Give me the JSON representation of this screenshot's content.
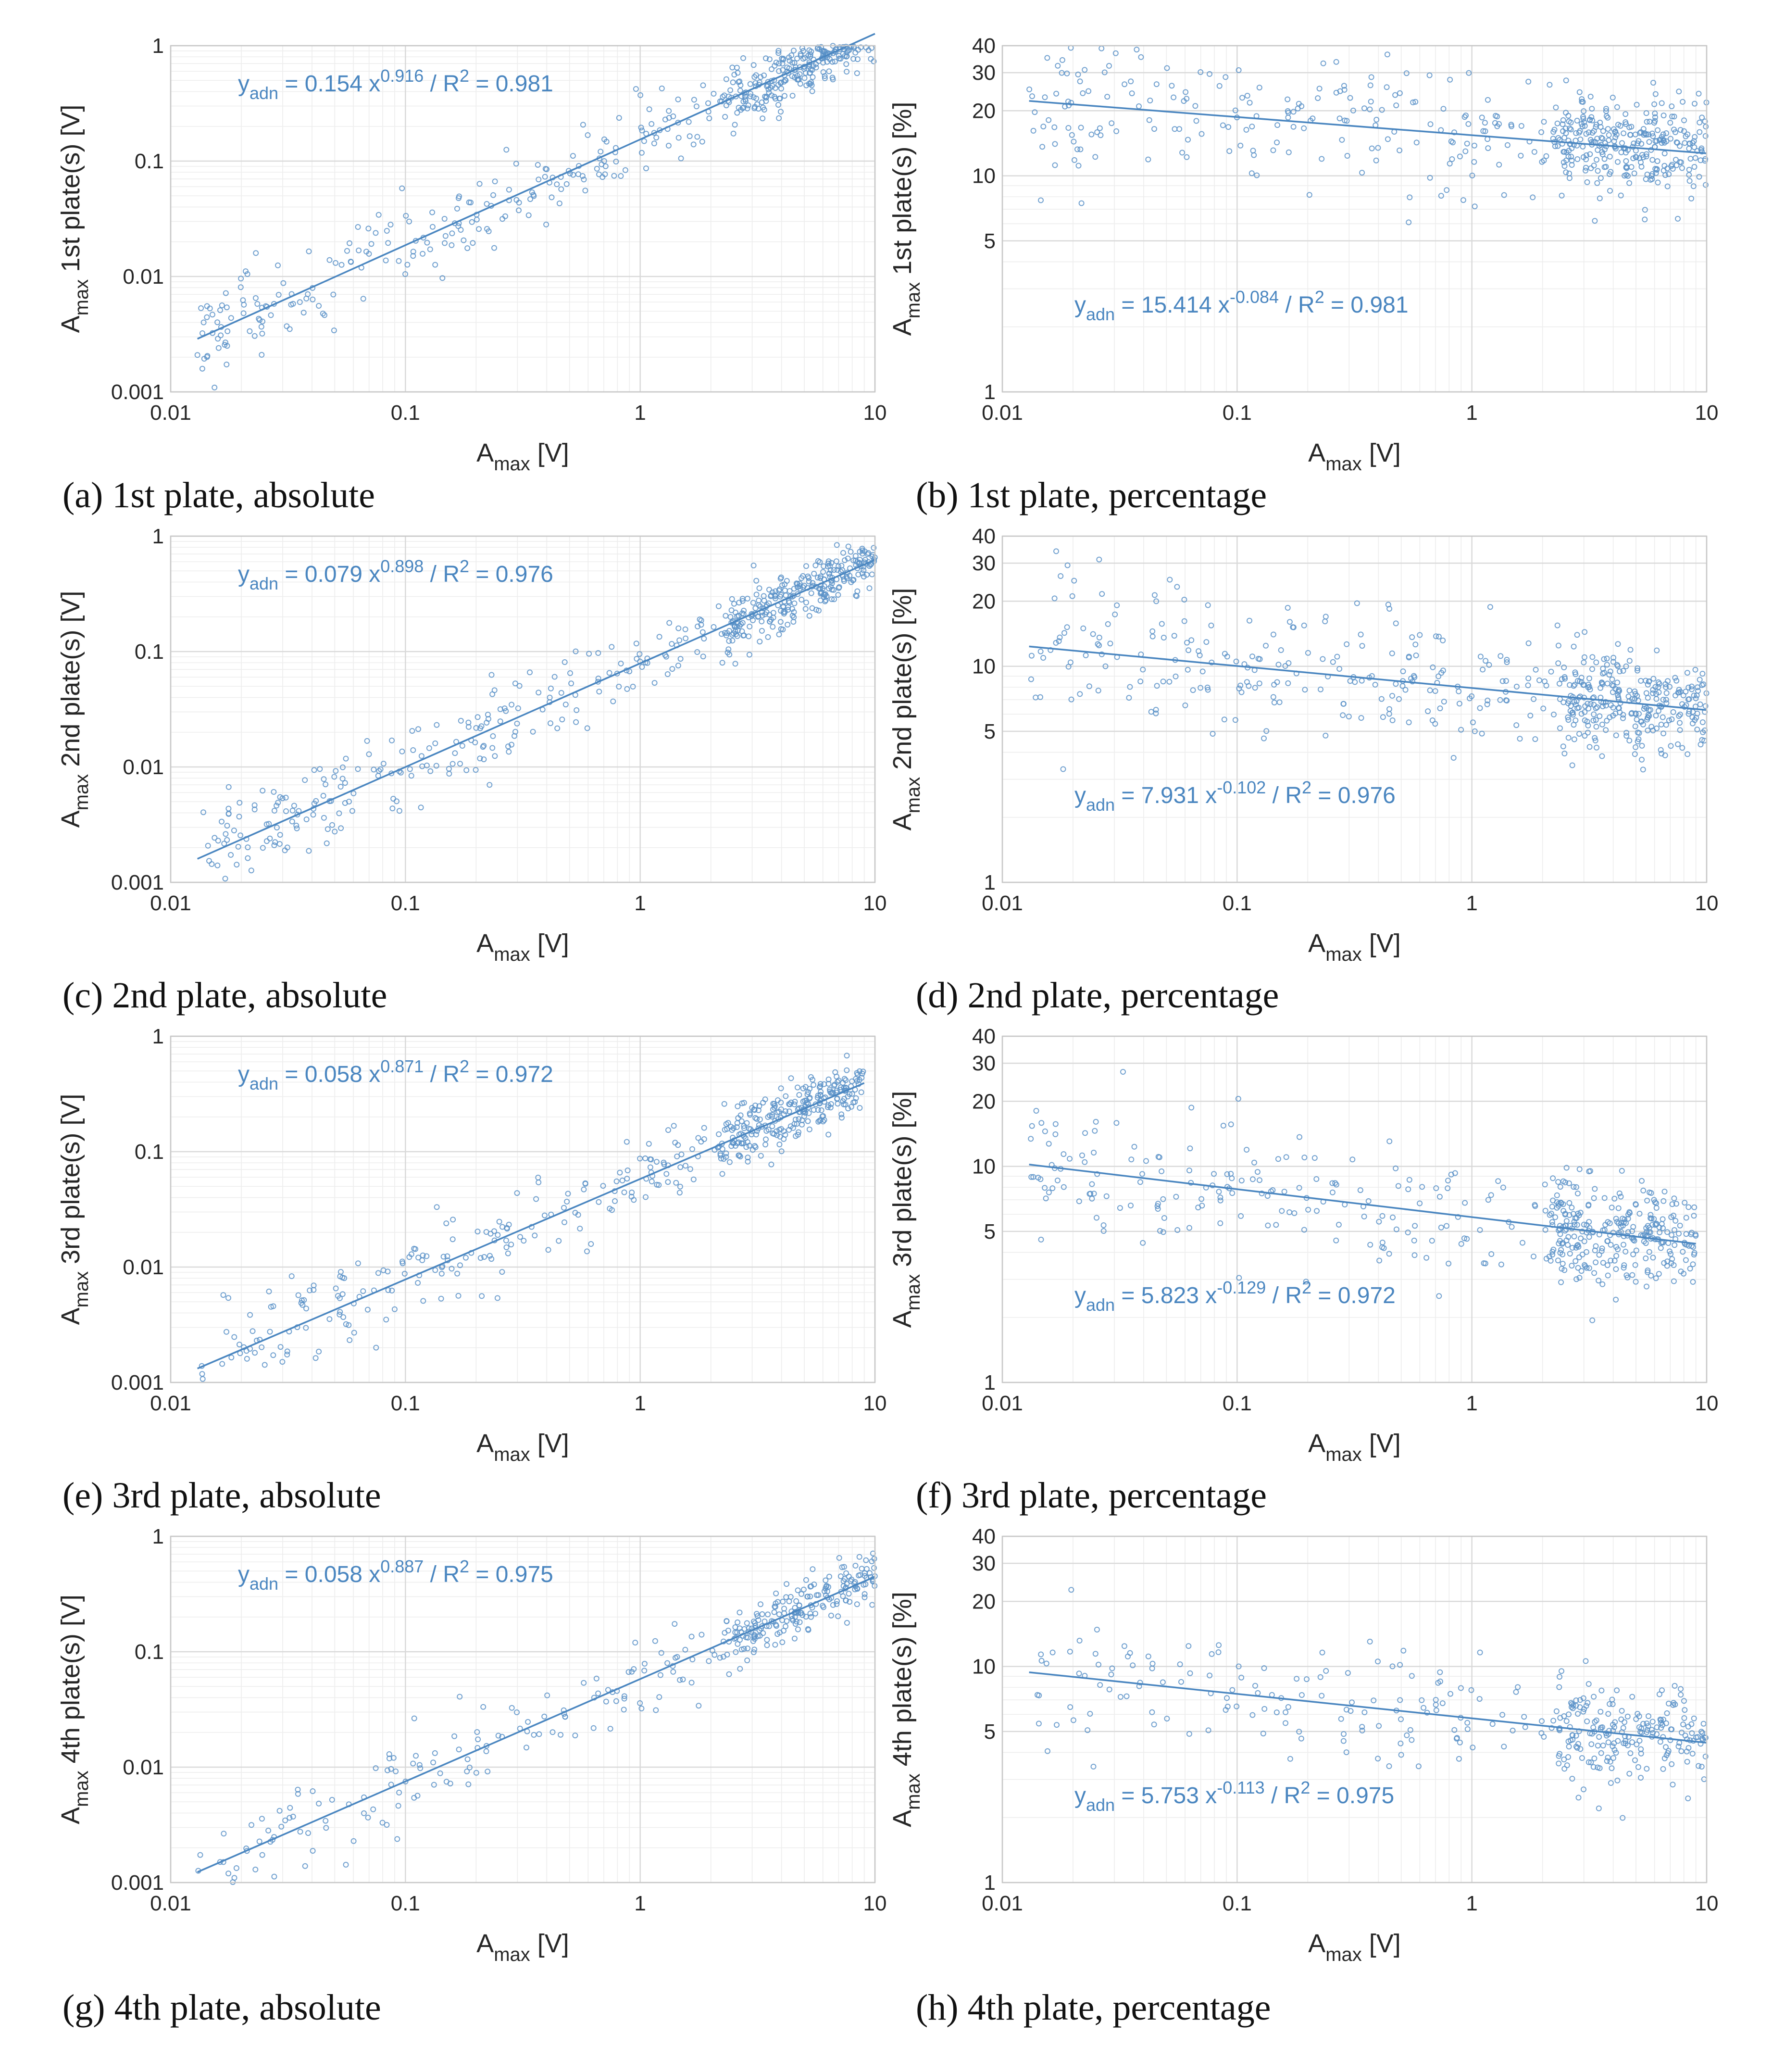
{
  "colors": {
    "series": "#5a92c8",
    "fit": "#4a86c0",
    "grid_major": "#d9d9d9",
    "grid_minor": "#ededed",
    "axis_text": "#262626"
  },
  "chart_data": [
    {
      "id": "a",
      "type": "scatter",
      "scale": "log-log",
      "caption": "(a) 1st plate, absolute",
      "xlabel_main": "A",
      "xlabel_sub": "max",
      "xlabel_unit": " [V]",
      "ylabel_main": "A",
      "ylabel_sub": "max",
      "ylabel_rest": " 1st plate(s) [V]",
      "xlim": [
        0.01,
        10
      ],
      "ylim": [
        0.001,
        1
      ],
      "xticks": [
        0.01,
        0.1,
        1,
        10
      ],
      "xtick_labels": [
        "0.01",
        "0.1",
        "1",
        "10"
      ],
      "yticks": [
        0.001,
        0.01,
        0.1,
        1
      ],
      "ytick_labels": [
        "0.001",
        "0.01",
        "0.1",
        "1"
      ],
      "grid": true,
      "fit": {
        "a": 0.154,
        "b": 0.916,
        "r2": 0.981,
        "x_range": [
          0.013,
          10
        ]
      },
      "equation": {
        "prefix": "y",
        "sub": "adn",
        "mid": " = 0.154 x",
        "exp": "0.916",
        "tail": " / R",
        "r2exp": "2",
        "end": " = 0.981"
      },
      "scatter": {
        "x_range": [
          0.013,
          10
        ],
        "spread": 0.18,
        "n": 520,
        "seed": 11
      }
    },
    {
      "id": "b",
      "type": "scatter",
      "scale": "log-log",
      "caption": "(b) 1st plate, percentage",
      "xlabel_main": "A",
      "xlabel_sub": "max",
      "xlabel_unit": " [V]",
      "ylabel_main": "A",
      "ylabel_sub": "max",
      "ylabel_rest": " 1st plate(s) [%]",
      "xlim": [
        0.01,
        10
      ],
      "ylim": [
        1,
        40
      ],
      "xticks": [
        0.01,
        0.1,
        1,
        10
      ],
      "xtick_labels": [
        "0.01",
        "0.1",
        "1",
        "10"
      ],
      "yticks": [
        1,
        5,
        10,
        20,
        30,
        40
      ],
      "ytick_labels": [
        "1",
        "5",
        "10",
        "20",
        "30",
        "40"
      ],
      "grid": true,
      "fit": {
        "a": 15.414,
        "b": -0.084,
        "r2": 0.981,
        "x_range": [
          0.013,
          10
        ]
      },
      "equation": {
        "prefix": "y",
        "sub": "adn",
        "mid": " = 15.414 x",
        "exp": "-0.084",
        "tail": " / R",
        "r2exp": "2",
        "end": " = 0.981"
      },
      "scatter": {
        "x_range": [
          0.013,
          10
        ],
        "spread": 0.16,
        "n": 520,
        "seed": 23
      }
    },
    {
      "id": "c",
      "type": "scatter",
      "scale": "log-log",
      "caption": "(c) 2nd plate, absolute",
      "xlabel_main": "A",
      "xlabel_sub": "max",
      "xlabel_unit": " [V]",
      "ylabel_main": "A",
      "ylabel_sub": "max",
      "ylabel_rest": " 2nd plate(s) [V]",
      "xlim": [
        0.01,
        10
      ],
      "ylim": [
        0.001,
        1
      ],
      "xticks": [
        0.01,
        0.1,
        1,
        10
      ],
      "xtick_labels": [
        "0.01",
        "0.1",
        "1",
        "10"
      ],
      "yticks": [
        0.001,
        0.01,
        0.1,
        1
      ],
      "ytick_labels": [
        "0.001",
        "0.01",
        "0.1",
        "1"
      ],
      "grid": true,
      "fit": {
        "a": 0.079,
        "b": 0.898,
        "r2": 0.976,
        "x_range": [
          0.013,
          10
        ]
      },
      "equation": {
        "prefix": "y",
        "sub": "adn",
        "mid": " = 0.079 x",
        "exp": "0.898",
        "tail": " / R",
        "r2exp": "2",
        "end": " = 0.976"
      },
      "scatter": {
        "x_range": [
          0.013,
          10
        ],
        "spread": 0.18,
        "n": 520,
        "seed": 37
      }
    },
    {
      "id": "d",
      "type": "scatter",
      "scale": "log-log",
      "caption": "(d) 2nd plate, percentage",
      "xlabel_main": "A",
      "xlabel_sub": "max",
      "xlabel_unit": " [V]",
      "ylabel_main": "A",
      "ylabel_sub": "max",
      "ylabel_rest": " 2nd plate(s) [%]",
      "xlim": [
        0.01,
        10
      ],
      "ylim": [
        1,
        40
      ],
      "xticks": [
        0.01,
        0.1,
        1,
        10
      ],
      "xtick_labels": [
        "0.01",
        "0.1",
        "1",
        "10"
      ],
      "yticks": [
        1,
        5,
        10,
        20,
        30,
        40
      ],
      "ytick_labels": [
        "1",
        "5",
        "10",
        "20",
        "30",
        "40"
      ],
      "grid": true,
      "fit": {
        "a": 7.931,
        "b": -0.102,
        "r2": 0.976,
        "x_range": [
          0.013,
          10
        ]
      },
      "equation": {
        "prefix": "y",
        "sub": "adn",
        "mid": " = 7.931 x",
        "exp": "-0.102",
        "tail": " / R",
        "r2exp": "2",
        "end": " = 0.976"
      },
      "scatter": {
        "x_range": [
          0.013,
          10
        ],
        "spread": 0.16,
        "n": 520,
        "seed": 41
      }
    },
    {
      "id": "e",
      "type": "scatter",
      "scale": "log-log",
      "caption": "(e) 3rd plate, absolute",
      "xlabel_main": "A",
      "xlabel_sub": "max",
      "xlabel_unit": " [V]",
      "ylabel_main": "A",
      "ylabel_sub": "max",
      "ylabel_rest": " 3rd plate(s) [V]",
      "xlim": [
        0.01,
        10
      ],
      "ylim": [
        0.001,
        1
      ],
      "xticks": [
        0.01,
        0.1,
        1,
        10
      ],
      "xtick_labels": [
        "0.01",
        "0.1",
        "1",
        "10"
      ],
      "yticks": [
        0.001,
        0.01,
        0.1,
        1
      ],
      "ytick_labels": [
        "0.001",
        "0.01",
        "0.1",
        "1"
      ],
      "grid": true,
      "fit": {
        "a": 0.058,
        "b": 0.871,
        "r2": 0.972,
        "x_range": [
          0.013,
          9
        ]
      },
      "equation": {
        "prefix": "y",
        "sub": "adn",
        "mid": " = 0.058 x",
        "exp": "0.871",
        "tail": " / R",
        "r2exp": "2",
        "end": " = 0.972"
      },
      "scatter": {
        "x_range": [
          0.013,
          9
        ],
        "spread": 0.18,
        "n": 480,
        "seed": 53
      }
    },
    {
      "id": "f",
      "type": "scatter",
      "scale": "log-log",
      "caption": "(f) 3rd plate, percentage",
      "xlabel_main": "A",
      "xlabel_sub": "max",
      "xlabel_unit": " [V]",
      "ylabel_main": "A",
      "ylabel_sub": "max",
      "ylabel_rest": " 3rd plate(s) [%]",
      "xlim": [
        0.01,
        10
      ],
      "ylim": [
        1,
        40
      ],
      "xticks": [
        0.01,
        0.1,
        1,
        10
      ],
      "xtick_labels": [
        "0.01",
        "0.1",
        "1",
        "10"
      ],
      "yticks": [
        1,
        5,
        10,
        20,
        30,
        40
      ],
      "ytick_labels": [
        "1",
        "5",
        "10",
        "20",
        "30",
        "40"
      ],
      "grid": true,
      "fit": {
        "a": 5.823,
        "b": -0.129,
        "r2": 0.972,
        "x_range": [
          0.013,
          9
        ]
      },
      "equation": {
        "prefix": "y",
        "sub": "adn",
        "mid": " = 5.823 x",
        "exp": "-0.129",
        "tail": " / R",
        "r2exp": "2",
        "end": " = 0.972"
      },
      "scatter": {
        "x_range": [
          0.013,
          9
        ],
        "spread": 0.16,
        "n": 480,
        "seed": 67
      }
    },
    {
      "id": "g",
      "type": "scatter",
      "scale": "log-log",
      "caption": "(g) 4th plate, absolute",
      "xlabel_main": "A",
      "xlabel_sub": "max",
      "xlabel_unit": " [V]",
      "ylabel_main": "A",
      "ylabel_sub": "max",
      "ylabel_rest": " 4th plate(s) [V]",
      "xlim": [
        0.01,
        10
      ],
      "ylim": [
        0.001,
        1
      ],
      "xticks": [
        0.01,
        0.1,
        1,
        10
      ],
      "xtick_labels": [
        "0.01",
        "0.1",
        "1",
        "10"
      ],
      "yticks": [
        0.001,
        0.01,
        0.1,
        1
      ],
      "ytick_labels": [
        "0.001",
        "0.01",
        "0.1",
        "1"
      ],
      "grid": true,
      "fit": {
        "a": 0.058,
        "b": 0.887,
        "r2": 0.975,
        "x_range": [
          0.013,
          10
        ]
      },
      "equation": {
        "prefix": "y",
        "sub": "adn",
        "mid": " = 0.058 x",
        "exp": "0.887",
        "tail": " / R",
        "r2exp": "2",
        "end": " = 0.975"
      },
      "scatter": {
        "x_range": [
          0.013,
          10
        ],
        "spread": 0.18,
        "n": 360,
        "seed": 79
      }
    },
    {
      "id": "h",
      "type": "scatter",
      "scale": "log-log",
      "caption": "(h) 4th plate, percentage",
      "xlabel_main": "A",
      "xlabel_sub": "max",
      "xlabel_unit": " [V]",
      "ylabel_main": "A",
      "ylabel_sub": "max",
      "ylabel_rest": " 4th plate(s) [%]",
      "xlim": [
        0.01,
        10
      ],
      "ylim": [
        1,
        40
      ],
      "xticks": [
        0.01,
        0.1,
        1,
        10
      ],
      "xtick_labels": [
        "0.01",
        "0.1",
        "1",
        "10"
      ],
      "yticks": [
        1,
        5,
        10,
        20,
        30,
        40
      ],
      "ytick_labels": [
        "1",
        "5",
        "10",
        "20",
        "30",
        "40"
      ],
      "grid": true,
      "fit": {
        "a": 5.753,
        "b": -0.113,
        "r2": 0.975,
        "x_range": [
          0.013,
          10
        ]
      },
      "equation": {
        "prefix": "y",
        "sub": "adn",
        "mid": " = 5.753 x",
        "exp": "-0.113",
        "tail": " / R",
        "r2exp": "2",
        "end": " = 0.975"
      },
      "scatter": {
        "x_range": [
          0.013,
          10
        ],
        "spread": 0.16,
        "n": 360,
        "seed": 83
      }
    }
  ]
}
